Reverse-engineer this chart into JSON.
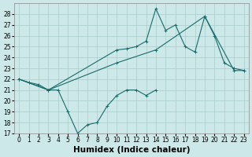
{
  "xlabel": "Humidex (Indice chaleur)",
  "line_color": "#1a6b6b",
  "bg_color": "#cce8e8",
  "grid_color": "#aacccc",
  "ylim": [
    17,
    29
  ],
  "xlim": [
    -0.5,
    23.5
  ],
  "yticks": [
    17,
    18,
    19,
    20,
    21,
    22,
    23,
    24,
    25,
    26,
    27,
    28
  ],
  "xticks": [
    0,
    1,
    2,
    3,
    4,
    5,
    6,
    7,
    8,
    9,
    10,
    11,
    12,
    13,
    14,
    15,
    16,
    17,
    18,
    19,
    20,
    21,
    22,
    23
  ],
  "tick_fontsize": 5.5,
  "xlabel_fontsize": 7.5,
  "s1_x": [
    0,
    1,
    2,
    3,
    4,
    5,
    6,
    7,
    8,
    9,
    10,
    11,
    12,
    13,
    14
  ],
  "s1_y": [
    22.0,
    21.7,
    21.5,
    21.0,
    21.0,
    19.0,
    17.0,
    17.8,
    18.0,
    19.5,
    20.5,
    21.0,
    21.0,
    20.5,
    21.0
  ],
  "s2_x": [
    0,
    3,
    10,
    11,
    12,
    13,
    14,
    15,
    16,
    17,
    18,
    19,
    20,
    21,
    22,
    23
  ],
  "s2_y": [
    22.0,
    21.0,
    24.7,
    24.8,
    25.0,
    25.5,
    28.5,
    26.5,
    27.0,
    25.0,
    24.5,
    27.8,
    26.0,
    23.5,
    23.0,
    22.8
  ],
  "s3_x": [
    0,
    3,
    10,
    14,
    19,
    22,
    23
  ],
  "s3_y": [
    22.0,
    21.0,
    23.5,
    24.7,
    27.8,
    22.8,
    22.8
  ]
}
